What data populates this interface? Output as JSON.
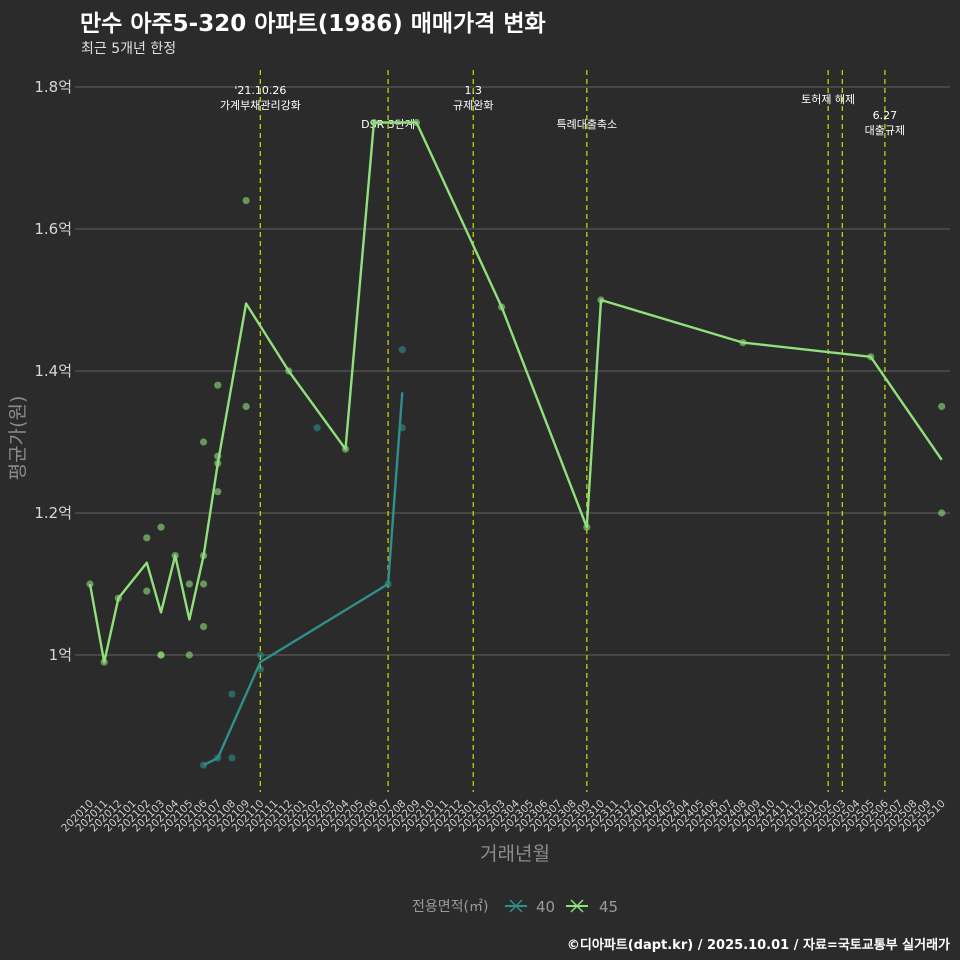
{
  "header": {
    "title": "만수 아주5-320 아파트(1986) 매매가격 변화",
    "subtitle": "최근 5개년 한정"
  },
  "footer": "©디아파트(dapt.kr) / 2025.10.01 / 자료=국토교통부 실거래가",
  "colors": {
    "bg": "#2b2b2b",
    "grid": "#575757",
    "vline": "#c8d000",
    "series40": "#2f8f8a",
    "series45": "#90e07c"
  },
  "chart_data": {
    "type": "line",
    "title": "만수 아주5-320 아파트(1986) 매매가격 변화",
    "xlabel": "거래년월",
    "ylabel": "평균가(원)",
    "ylim": [
      0.81,
      1.82
    ],
    "yticks": [
      1.0,
      1.2,
      1.4,
      1.6,
      1.8
    ],
    "ytick_labels": [
      "1억",
      "1.2억",
      "1.4억",
      "1.6억",
      "1.8억"
    ],
    "categories": [
      "202010",
      "202011",
      "202012",
      "202101",
      "202102",
      "202103",
      "202104",
      "202105",
      "202106",
      "202107",
      "202108",
      "202109",
      "202110",
      "202111",
      "202112",
      "202201",
      "202202",
      "202203",
      "202204",
      "202205",
      "202206",
      "202207",
      "202208",
      "202209",
      "202210",
      "202211",
      "202212",
      "202301",
      "202302",
      "202303",
      "202304",
      "202305",
      "202306",
      "202307",
      "202308",
      "202309",
      "202310",
      "202311",
      "202312",
      "202401",
      "202402",
      "202403",
      "202404",
      "202405",
      "202406",
      "202407",
      "202408",
      "202409",
      "202410",
      "202411",
      "202412",
      "202501",
      "202502",
      "202503",
      "202504",
      "202505",
      "202506",
      "202507",
      "202508",
      "202509",
      "202510"
    ],
    "legend": {
      "title": "전용면적(㎡)",
      "entries": [
        "40",
        "45"
      ]
    },
    "series": [
      {
        "name": "40",
        "line": [
          [
            8,
            0.845
          ],
          [
            9,
            0.855
          ],
          [
            12,
            0.99
          ],
          [
            21,
            1.1
          ],
          [
            22,
            1.37
          ]
        ],
        "points": [
          [
            8,
            0.845
          ],
          [
            9,
            0.855
          ],
          [
            10,
            0.945
          ],
          [
            10,
            0.855
          ],
          [
            12,
            1.0
          ],
          [
            12,
            0.98
          ],
          [
            16,
            1.32
          ],
          [
            21,
            1.1
          ],
          [
            22,
            1.43
          ],
          [
            22,
            1.32
          ]
        ]
      },
      {
        "name": "45",
        "line": [
          [
            0,
            1.1
          ],
          [
            1,
            0.99
          ],
          [
            2,
            1.08
          ],
          [
            4,
            1.13
          ],
          [
            5,
            1.06
          ],
          [
            6,
            1.14
          ],
          [
            7,
            1.05
          ],
          [
            8,
            1.14
          ],
          [
            9,
            1.27
          ],
          [
            11,
            1.495
          ],
          [
            14,
            1.4
          ],
          [
            18,
            1.29
          ],
          [
            20,
            1.75
          ],
          [
            23,
            1.75
          ],
          [
            29,
            1.49
          ],
          [
            35,
            1.18
          ],
          [
            36,
            1.5
          ],
          [
            46,
            1.44
          ],
          [
            55,
            1.42
          ],
          [
            60,
            1.275
          ]
        ],
        "points": [
          [
            0,
            1.1
          ],
          [
            1,
            0.99
          ],
          [
            2,
            1.08
          ],
          [
            4,
            1.165
          ],
          [
            4,
            1.09
          ],
          [
            5,
            1.18
          ],
          [
            5,
            1.0
          ],
          [
            5,
            1.0
          ],
          [
            6,
            1.14
          ],
          [
            7,
            1.1
          ],
          [
            7,
            1.0
          ],
          [
            8,
            1.3
          ],
          [
            8,
            1.14
          ],
          [
            8,
            1.1
          ],
          [
            8,
            1.04
          ],
          [
            9,
            1.38
          ],
          [
            9,
            1.28
          ],
          [
            9,
            1.27
          ],
          [
            9,
            1.23
          ],
          [
            11,
            1.64
          ],
          [
            11,
            1.35
          ],
          [
            14,
            1.4
          ],
          [
            18,
            1.29
          ],
          [
            20,
            1.75
          ],
          [
            23,
            1.75
          ],
          [
            29,
            1.49
          ],
          [
            35,
            1.18
          ],
          [
            36,
            1.5
          ],
          [
            46,
            1.44
          ],
          [
            55,
            1.42
          ],
          [
            60,
            1.35
          ],
          [
            60,
            1.2
          ]
        ]
      }
    ],
    "vlines": [
      {
        "x": 12.0,
        "labels": [
          "'21.10.26",
          "가계부채관리강화"
        ],
        "row": 0
      },
      {
        "x": 21.0,
        "labels": [
          "DSR 3단계"
        ],
        "row": 2
      },
      {
        "x": 27.0,
        "labels": [
          "1.3",
          "규제완화"
        ],
        "row": 0
      },
      {
        "x": 35.0,
        "labels": [
          "특례대출축소"
        ],
        "row": 2
      },
      {
        "x": 52.0,
        "labels": [
          "토허제 해제"
        ],
        "row": 1
      },
      {
        "x": 53.0,
        "labels": [],
        "row": 0
      },
      {
        "x": 56.0,
        "labels": [
          "6.27",
          "대출규제"
        ],
        "row": 3
      }
    ]
  }
}
